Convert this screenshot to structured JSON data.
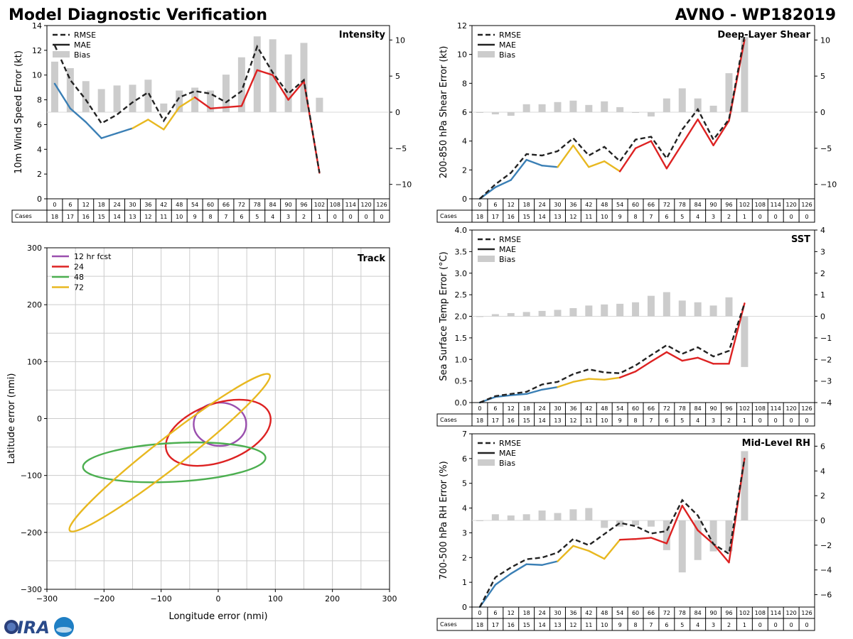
{
  "header": {
    "left_title": "Model Diagnostic Verification",
    "right_title": "AVNO - WP182019"
  },
  "hours": [
    "0",
    "6",
    "12",
    "18",
    "24",
    "30",
    "36",
    "42",
    "48",
    "54",
    "60",
    "66",
    "72",
    "78",
    "84",
    "90",
    "96",
    "102",
    "108",
    "114",
    "120",
    "126"
  ],
  "cases": [
    "18",
    "17",
    "16",
    "15",
    "14",
    "13",
    "12",
    "11",
    "10",
    "9",
    "8",
    "7",
    "6",
    "5",
    "4",
    "3",
    "2",
    "1",
    "0",
    "0",
    "0",
    "0"
  ],
  "cases_label": "Cases",
  "legend": {
    "rmse": "RMSE",
    "mae": "MAE",
    "bias": "Bias"
  },
  "colors": {
    "blue": "#3a7fb5",
    "yellow": "#e8b820",
    "red": "#dd2222",
    "purple": "#9a4fae",
    "green": "#4caf50",
    "bias": "#cccccc"
  },
  "chart_data": [
    {
      "id": "intensity",
      "type": "line",
      "title": "Intensity",
      "ylabel": "10m Wind Speed Error (kt)",
      "ylim": [
        0,
        14
      ],
      "yticks": [
        0,
        2,
        4,
        6,
        8,
        10,
        12,
        14
      ],
      "y2lim": [
        -12,
        12
      ],
      "y2ticks": [
        -10,
        -5,
        0,
        5,
        10
      ],
      "rmse": [
        12.4,
        9.6,
        8.0,
        6.1,
        6.8,
        7.8,
        8.6,
        6.3,
        8.2,
        8.7,
        8.5,
        7.8,
        8.7,
        12.3,
        10.2,
        8.5,
        9.6,
        2.1
      ],
      "mae": [
        9.3,
        7.3,
        6.2,
        4.9,
        5.3,
        5.7,
        6.4,
        5.6,
        7.4,
        8.2,
        7.3,
        7.4,
        7.5,
        10.4,
        10.0,
        8.0,
        9.5,
        2.1
      ],
      "bias": [
        7.0,
        6.1,
        4.3,
        3.2,
        3.7,
        3.8,
        4.5,
        1.2,
        3.0,
        3.4,
        3.0,
        5.2,
        7.6,
        10.5,
        10.1,
        8.0,
        9.6,
        2.0
      ]
    },
    {
      "id": "shear",
      "type": "line",
      "title": "Deep-Layer Shear",
      "ylabel": "200-850 hPa Shear Error (kt)",
      "ylim": [
        0,
        12
      ],
      "yticks": [
        0,
        2,
        4,
        6,
        8,
        10,
        12
      ],
      "y2lim": [
        -12,
        12
      ],
      "y2ticks": [
        -10,
        -5,
        0,
        5,
        10
      ],
      "rmse": [
        0,
        1.0,
        1.8,
        3.1,
        3.0,
        3.3,
        4.2,
        3.0,
        3.6,
        2.6,
        4.1,
        4.3,
        2.8,
        4.8,
        6.2,
        4.1,
        5.5,
        11.3
      ],
      "mae": [
        0,
        0.8,
        1.3,
        2.7,
        2.3,
        2.2,
        3.7,
        2.2,
        2.6,
        1.9,
        3.5,
        4.0,
        2.1,
        3.8,
        5.5,
        3.7,
        5.4,
        11.0
      ],
      "bias": [
        0,
        -0.3,
        -0.5,
        1.1,
        1.1,
        1.4,
        1.6,
        1.0,
        1.5,
        0.7,
        -0.1,
        -0.6,
        1.9,
        3.3,
        1.9,
        0.9,
        5.4,
        10.4
      ]
    },
    {
      "id": "sst",
      "type": "line",
      "title": "SST",
      "ylabel": "Sea Surface Temp Error (°C)",
      "ylim": [
        0,
        4
      ],
      "yticks": [
        0,
        0.5,
        1.0,
        1.5,
        2.0,
        2.5,
        3.0,
        3.5,
        4.0
      ],
      "y2lim": [
        -4,
        4
      ],
      "y2ticks": [
        -4,
        -3,
        -2,
        -1,
        0,
        1,
        2,
        3,
        4
      ],
      "rmse": [
        0,
        0.15,
        0.2,
        0.25,
        0.42,
        0.48,
        0.66,
        0.77,
        0.7,
        0.68,
        0.86,
        1.1,
        1.33,
        1.13,
        1.28,
        1.07,
        1.2,
        2.3
      ],
      "mae": [
        0,
        0.13,
        0.17,
        0.2,
        0.3,
        0.36,
        0.48,
        0.55,
        0.53,
        0.58,
        0.72,
        0.95,
        1.17,
        0.97,
        1.04,
        0.9,
        0.9,
        2.3
      ],
      "bias": [
        0,
        0.1,
        0.15,
        0.2,
        0.25,
        0.3,
        0.38,
        0.5,
        0.55,
        0.58,
        0.65,
        0.95,
        1.12,
        0.73,
        0.65,
        0.5,
        0.88,
        -2.35
      ]
    },
    {
      "id": "rh",
      "type": "line",
      "title": "Mid-Level RH",
      "ylabel": "700-500 hPa RH Error (%)",
      "ylim": [
        0,
        7
      ],
      "yticks": [
        0,
        1,
        2,
        3,
        4,
        5,
        6,
        7
      ],
      "y2lim": [
        -7,
        7
      ],
      "y2ticks": [
        -6,
        -4,
        -2,
        0,
        2,
        4,
        6
      ],
      "rmse": [
        0,
        1.2,
        1.6,
        1.93,
        2.0,
        2.2,
        2.75,
        2.5,
        2.95,
        3.4,
        3.27,
        2.97,
        3.07,
        4.32,
        3.7,
        2.55,
        2.15,
        6.0
      ],
      "mae": [
        0,
        0.9,
        1.35,
        1.73,
        1.7,
        1.85,
        2.47,
        2.27,
        1.95,
        2.72,
        2.75,
        2.8,
        2.57,
        4.1,
        3.1,
        2.55,
        1.8,
        6.0
      ],
      "bias": [
        0,
        0.5,
        0.4,
        0.5,
        0.8,
        0.6,
        0.9,
        1.0,
        -0.6,
        -0.5,
        -0.4,
        -0.5,
        -2.4,
        -4.2,
        -3.2,
        -2.5,
        -2.5,
        5.6
      ]
    },
    {
      "id": "track",
      "type": "scatter",
      "title": "Track",
      "xlabel": "Longitude error (nmi)",
      "ylabel": "Latitude error (nmi)",
      "xlim": [
        -300,
        300
      ],
      "ylim": [
        -300,
        300
      ],
      "xticks": [
        -300,
        -200,
        -100,
        0,
        100,
        200,
        300
      ],
      "yticks": [
        -300,
        -200,
        -100,
        0,
        100,
        200,
        300
      ],
      "ellipses": [
        {
          "label": "12 hr fcst",
          "color": "#9a4fae",
          "cx": 3,
          "cy": -10,
          "rx": 46,
          "ry": 38,
          "angle": 0
        },
        {
          "label": "24",
          "color": "#dd2222",
          "cx": 0,
          "cy": -25,
          "rx": 96,
          "ry": 51,
          "angle": 20
        },
        {
          "label": "48",
          "color": "#4caf50",
          "cx": -77,
          "cy": -77,
          "rx": 160,
          "ry": 34,
          "angle": 3
        },
        {
          "label": "72",
          "color": "#e8b820",
          "cx": -85,
          "cy": -60,
          "rx": 222,
          "ry": 26,
          "angle": 38
        }
      ]
    }
  ]
}
